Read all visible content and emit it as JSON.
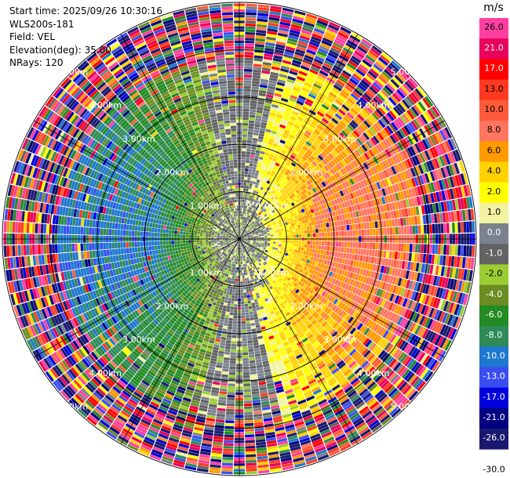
{
  "header": {
    "start_time": "Start time: 2025/09/26 10:30:16",
    "site": "WLS200s-181",
    "field": "Field: VEL",
    "elevation": "Elevation(deg): 35.00",
    "nrays": "NRays: 120"
  },
  "chart_data": {
    "type": "heatmap",
    "projection": "polar-ppi",
    "field": "VEL",
    "elevation_deg": 35.0,
    "n_rays": 120,
    "range_rings_km": [
      1,
      2,
      3,
      4,
      5
    ],
    "ring_labels": [
      "1.00km",
      "2.00km",
      "3.00km",
      "4.00km",
      "5.00km"
    ],
    "max_range_km": 5.0,
    "pattern": {
      "west": "negative velocities, about -8 to -12 m/s (green to blue)",
      "east": "positive velocities, about 4 to 10 m/s (yellow to orange)",
      "near_center": "near 0 m/s (gray)",
      "far_range": "noisy random values"
    },
    "colorbar": {
      "unit": "m/s",
      "bins": [
        {
          "label": "26.0",
          "color": "#ff3fa0"
        },
        {
          "label": "21.0",
          "color": "#e8005a"
        },
        {
          "label": "17.0",
          "color": "#ff0000"
        },
        {
          "label": "13.0",
          "color": "#ff3a20"
        },
        {
          "label": "10.0",
          "color": "#ff5a3a"
        },
        {
          "label": "8.0",
          "color": "#ff7660"
        },
        {
          "label": "6.0",
          "color": "#ff9a00"
        },
        {
          "label": "4.0",
          "color": "#ffd200"
        },
        {
          "label": "2.0",
          "color": "#ffff00"
        },
        {
          "label": "1.0",
          "color": "#f2f2a0"
        },
        {
          "label": "0.0",
          "color": "#7a828e"
        },
        {
          "label": "-1.0",
          "color": "#636363"
        },
        {
          "label": "-2.0",
          "color": "#9acd32"
        },
        {
          "label": "-4.0",
          "color": "#6b8e23"
        },
        {
          "label": "-6.0",
          "color": "#228b22"
        },
        {
          "label": "-8.0",
          "color": "#2e8b57"
        },
        {
          "label": "-10.0",
          "color": "#1e78d0"
        },
        {
          "label": "-13.0",
          "color": "#3a4ef0"
        },
        {
          "label": "-17.0",
          "color": "#0000dd"
        },
        {
          "label": "-21.0",
          "color": "#000080"
        },
        {
          "label": "-26.0",
          "color": "#191970"
        },
        {
          "label": "-30.0",
          "color": ""
        }
      ]
    }
  }
}
